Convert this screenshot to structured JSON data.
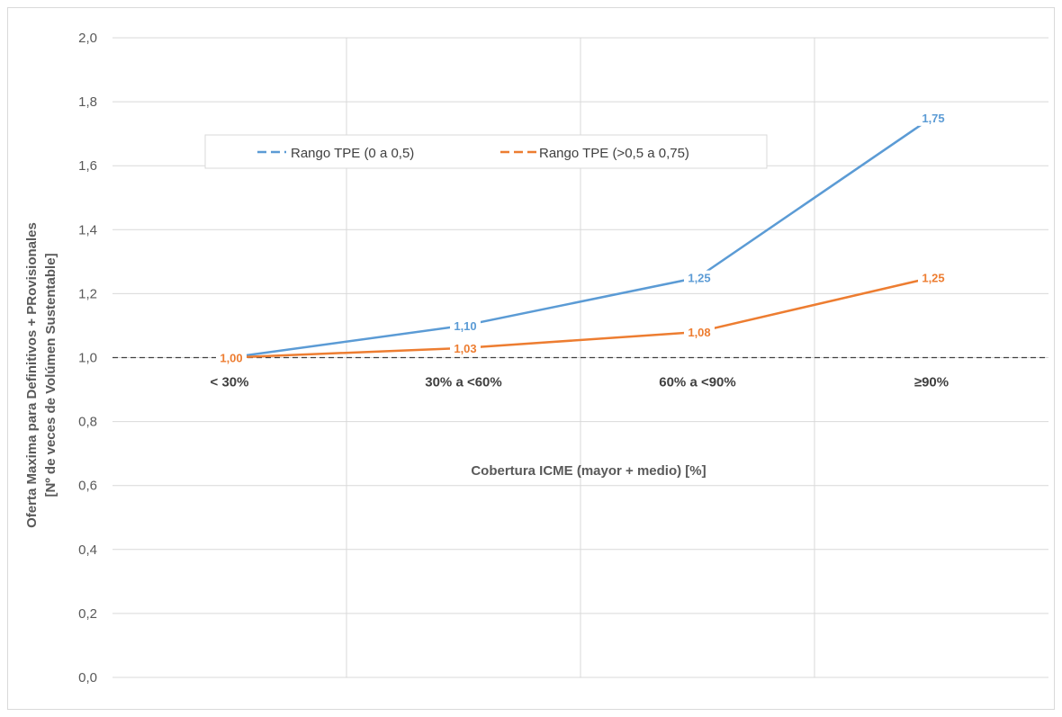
{
  "chart_data": {
    "type": "line",
    "categories": [
      "< 30%",
      "30% a <60%",
      "60% a <90%",
      "≥90%"
    ],
    "series": [
      {
        "name": "Rango TPE (0 a 0,5)",
        "values": [
          1.0,
          1.1,
          1.25,
          1.75
        ],
        "labels": [
          "",
          "1,10",
          "1,25",
          "1,75"
        ],
        "color": "#5b9bd5"
      },
      {
        "name": "Rango TPE (>0,5 a 0,75)",
        "values": [
          1.0,
          1.03,
          1.08,
          1.25
        ],
        "labels": [
          "1,00",
          "1,03",
          "1,08",
          "1,25"
        ],
        "color": "#ed7d31"
      }
    ],
    "ylim": [
      0,
      2
    ],
    "yticks": [
      "0,0",
      "0,2",
      "0,4",
      "0,6",
      "0,8",
      "1,0",
      "1,2",
      "1,4",
      "1,6",
      "1,8",
      "2,0"
    ],
    "ytick_values": [
      0,
      0.2,
      0.4,
      0.6,
      0.8,
      1.0,
      1.2,
      1.4,
      1.6,
      1.8,
      2.0
    ],
    "xlabel": "Cobertura ICME (mayor + medio) [%]",
    "ylabel_line1": "Oferta Maxima para Definitivos  + PRovisionales",
    "ylabel_line2": "[Nº de veces de Volúmen Sustentable]",
    "reference_line": 1.0,
    "grid": true,
    "legend_position": "top-left"
  }
}
